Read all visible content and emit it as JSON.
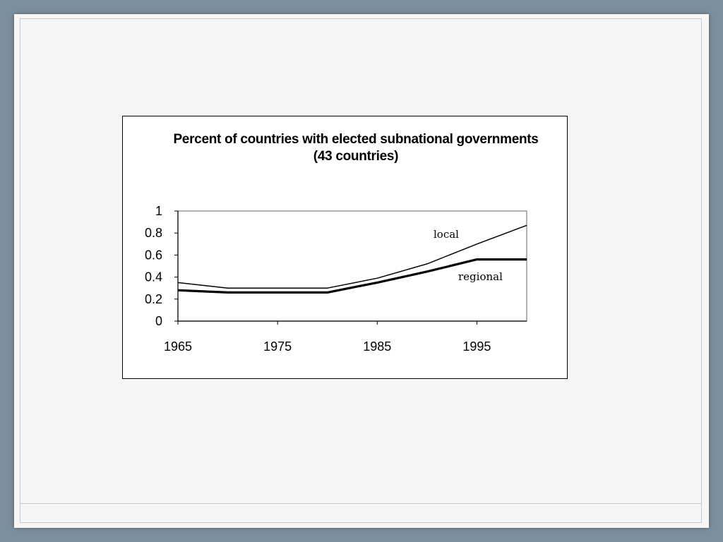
{
  "chart_data": {
    "type": "line",
    "title": "Percent of countries with elected subnational governments (43 countries)",
    "xlabel": "",
    "ylabel": "",
    "x": [
      1965,
      1970,
      1975,
      1980,
      1985,
      1990,
      1995,
      2000
    ],
    "xlim": [
      1965,
      2000
    ],
    "ylim": [
      0,
      1
    ],
    "x_ticks": [
      1965,
      1975,
      1985,
      1995
    ],
    "x_tick_labels": [
      "1965",
      "1975",
      "1985",
      "1995"
    ],
    "y_ticks": [
      0,
      0.2,
      0.4,
      0.6,
      0.8,
      1
    ],
    "y_tick_labels": [
      "0",
      "0.2",
      "0.4",
      "0.6",
      "0.8",
      "1"
    ],
    "grid": false,
    "legend": "none",
    "series": [
      {
        "name": "local",
        "values": [
          0.35,
          0.3,
          0.3,
          0.3,
          0.39,
          0.52,
          0.7,
          0.87
        ],
        "color": "#000000",
        "weight": "thin"
      },
      {
        "name": "regional",
        "values": [
          0.28,
          0.26,
          0.26,
          0.26,
          0.35,
          0.45,
          0.56,
          0.56
        ],
        "color": "#000000",
        "weight": "thick"
      }
    ]
  },
  "colors": {
    "background": "#7d8f9c",
    "slide": "#f6f6f6",
    "plot": "#ffffff",
    "ink": "#000000"
  }
}
